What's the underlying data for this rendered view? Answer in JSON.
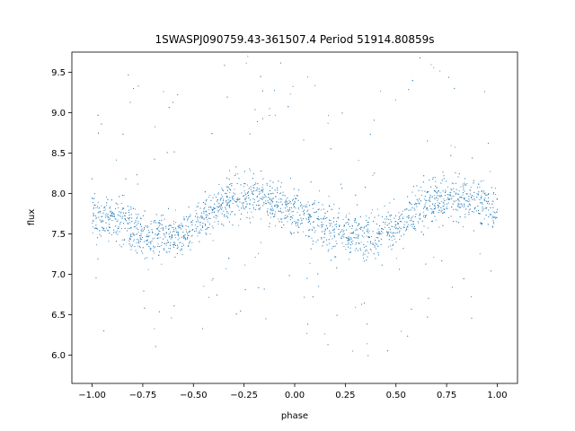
{
  "chart_data": {
    "type": "scatter",
    "title": "1SWASPJ090759.43-361507.4 Period 51914.80859s",
    "xlabel": "phase",
    "ylabel": "flux",
    "xlim": [
      -1.1,
      1.1
    ],
    "ylim": [
      5.65,
      9.75
    ],
    "xticks": [
      -1.0,
      -0.75,
      -0.5,
      -0.25,
      0.0,
      0.25,
      0.5,
      0.75,
      1.0
    ],
    "xtick_labels": [
      "−1.00",
      "−0.75",
      "−0.50",
      "−0.25",
      "0.00",
      "0.25",
      "0.50",
      "0.75",
      "1.00"
    ],
    "yticks": [
      6.0,
      6.5,
      7.0,
      7.5,
      8.0,
      8.5,
      9.0,
      9.5
    ],
    "ytick_labels": [
      "6.0",
      "6.5",
      "7.0",
      "7.5",
      "8.0",
      "8.5",
      "9.0",
      "9.5"
    ],
    "grid": false,
    "marker_color": "#1f77b4",
    "series": [
      {
        "x": [
          -1.0,
          -0.95,
          -0.9,
          -0.85,
          -0.8,
          -0.75,
          -0.7,
          -0.65,
          -0.6,
          -0.55,
          -0.5,
          -0.45,
          -0.4,
          -0.35,
          -0.3,
          -0.25,
          -0.2,
          -0.15,
          -0.1,
          -0.05,
          0.0,
          0.05,
          0.1,
          0.15,
          0.2,
          0.25,
          0.3,
          0.35,
          0.4,
          0.45,
          0.5,
          0.55,
          0.6,
          0.65,
          0.7,
          0.75,
          0.8,
          0.85,
          0.9,
          0.95,
          1.0
        ],
        "y": [
          7.78,
          7.74,
          7.7,
          7.64,
          7.57,
          7.51,
          7.47,
          7.46,
          7.48,
          7.53,
          7.6,
          7.69,
          7.79,
          7.87,
          7.93,
          7.96,
          7.96,
          7.93,
          7.88,
          7.83,
          7.78,
          7.74,
          7.7,
          7.64,
          7.57,
          7.51,
          7.47,
          7.46,
          7.48,
          7.53,
          7.6,
          7.69,
          7.79,
          7.87,
          7.93,
          7.96,
          7.96,
          7.93,
          7.88,
          7.83,
          7.78
        ]
      }
    ]
  }
}
